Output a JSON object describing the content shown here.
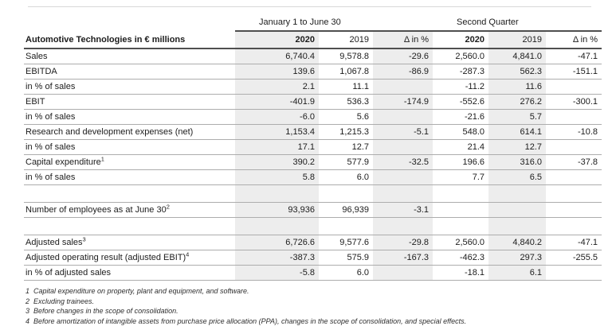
{
  "colors": {
    "band_gray": "#ededed",
    "row_line": "#adadad",
    "header_rule": "#4f4f4f",
    "top_hairline": "#d8d8d8",
    "text": "#1c1c1c"
  },
  "table": {
    "title": "Automotive Technologies in € millions",
    "col_groups": [
      {
        "label": "January 1 to June 30"
      },
      {
        "label": "Second Quarter"
      }
    ],
    "columns": [
      "2020",
      "2019",
      "Δ in %",
      "2020",
      "2019",
      "Δ in %"
    ],
    "rows": [
      {
        "label": "Sales",
        "sup": "",
        "values": [
          "6,740.4",
          "9,578.8",
          "-29.6",
          "2,560.0",
          "4,841.0",
          "-47.1"
        ]
      },
      {
        "label": "EBITDA",
        "sup": "",
        "values": [
          "139.6",
          "1,067.8",
          "-86.9",
          "-287.3",
          "562.3",
          "-151.1"
        ]
      },
      {
        "label": "in % of sales",
        "sup": "",
        "values": [
          "2.1",
          "11.1",
          "",
          "-11.2",
          "11.6",
          ""
        ]
      },
      {
        "label": "EBIT",
        "sup": "",
        "values": [
          "-401.9",
          "536.3",
          "-174.9",
          "-552.6",
          "276.2",
          "-300.1"
        ]
      },
      {
        "label": "in % of sales",
        "sup": "",
        "values": [
          "-6.0",
          "5.6",
          "",
          "-21.6",
          "5.7",
          ""
        ]
      },
      {
        "label": "Research and development expenses (net)",
        "sup": "",
        "values": [
          "1,153.4",
          "1,215.3",
          "-5.1",
          "548.0",
          "614.1",
          "-10.8"
        ]
      },
      {
        "label": "in % of sales",
        "sup": "",
        "values": [
          "17.1",
          "12.7",
          "",
          "21.4",
          "12.7",
          ""
        ]
      },
      {
        "label": "Capital expenditure",
        "sup": "1",
        "values": [
          "390.2",
          "577.9",
          "-32.5",
          "196.6",
          "316.0",
          "-37.8"
        ]
      },
      {
        "label": "in % of sales",
        "sup": "",
        "values": [
          "5.8",
          "6.0",
          "",
          "7.7",
          "6.5",
          ""
        ]
      },
      {
        "type": "spacer"
      },
      {
        "label": "Number of employees as at June 30",
        "sup": "2",
        "values": [
          "93,936",
          "96,939",
          "-3.1",
          "",
          "",
          ""
        ]
      },
      {
        "type": "spacer"
      },
      {
        "label": "Adjusted sales",
        "sup": "3",
        "values": [
          "6,726.6",
          "9,577.6",
          "-29.8",
          "2,560.0",
          "4,840.2",
          "-47.1"
        ]
      },
      {
        "label": "Adjusted operating result (adjusted EBIT)",
        "sup": "4",
        "values": [
          "-387.3",
          "575.9",
          "-167.3",
          "-462.3",
          "297.3",
          "-255.5"
        ]
      },
      {
        "label": "in % of adjusted sales",
        "sup": "",
        "values": [
          "-5.8",
          "6.0",
          "",
          "-18.1",
          "6.1",
          ""
        ]
      }
    ],
    "footnotes": [
      {
        "num": "1",
        "text": "Capital expenditure on property, plant and equipment, and software."
      },
      {
        "num": "2",
        "text": "Excluding trainees."
      },
      {
        "num": "3",
        "text": "Before changes in the scope of consolidation."
      },
      {
        "num": "4",
        "text": "Before amortization of intangible assets from purchase price allocation (PPA), changes in the scope of consolidation, and special effects."
      }
    ]
  }
}
